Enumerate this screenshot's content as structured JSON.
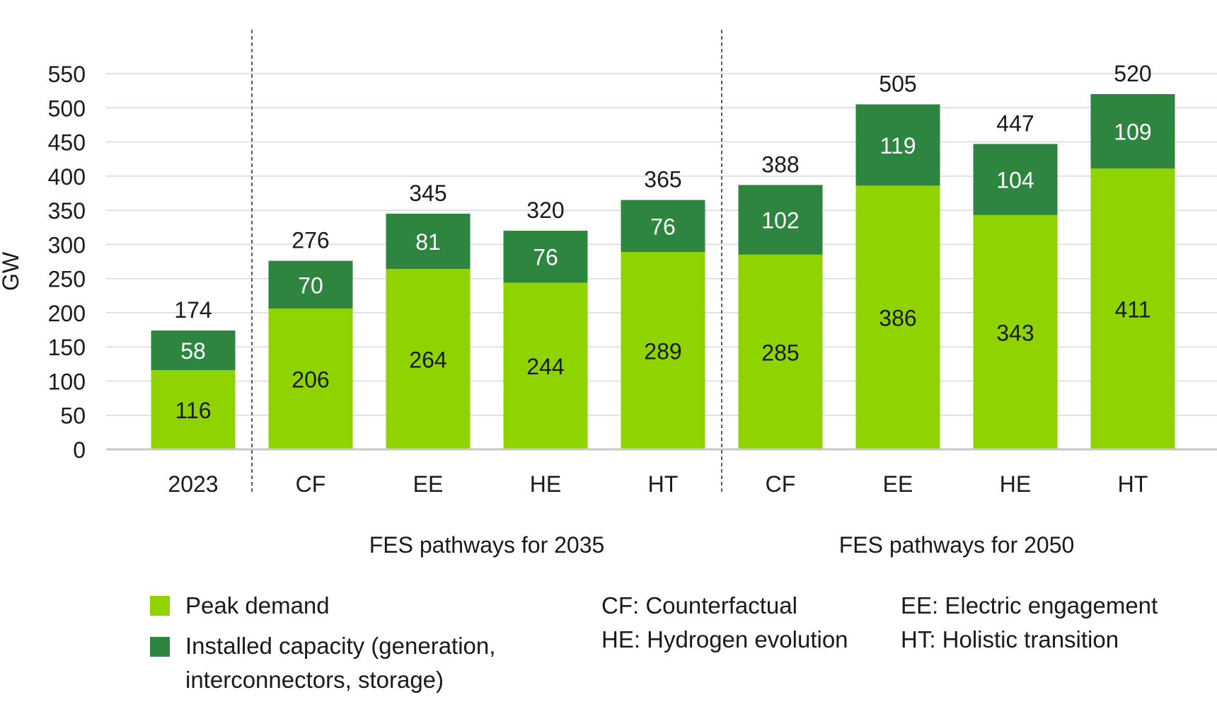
{
  "colors": {
    "peak_demand": "#8fd400",
    "installed_capacity": "#2e8540",
    "grid": "#d9d9d9",
    "axis": "#c8c8c8",
    "text": "#1a1a1a"
  },
  "chart_data": {
    "type": "bar",
    "stacked": true,
    "title": "",
    "ylabel": "GW",
    "xlabel": "",
    "ylim": [
      0,
      550
    ],
    "yticks": [
      0,
      50,
      100,
      150,
      200,
      250,
      300,
      350,
      400,
      450,
      500,
      550
    ],
    "grid": true,
    "categories": [
      "2023",
      "CF",
      "EE",
      "HE",
      "HT",
      "CF",
      "EE",
      "HE",
      "HT"
    ],
    "groups": [
      {
        "label": "",
        "start": 0,
        "end": 0
      },
      {
        "label": "FES pathways for 2035",
        "start": 1,
        "end": 4
      },
      {
        "label": "FES pathways for 2050",
        "start": 5,
        "end": 8
      }
    ],
    "series": [
      {
        "name": "Peak demand",
        "values": [
          116,
          206,
          264,
          244,
          289,
          285,
          386,
          343,
          411
        ]
      },
      {
        "name": "Installed capacity (generation, interconnectors, storage)",
        "values": [
          58,
          70,
          81,
          76,
          76,
          102,
          119,
          104,
          109
        ]
      }
    ],
    "totals": [
      174,
      276,
      345,
      320,
      365,
      388,
      505,
      447,
      520
    ],
    "legend_position": "bottom"
  },
  "legend": {
    "peak_demand": "Peak demand",
    "installed_capacity": "Installed capacity (generation,\ninterconnectors, storage)"
  },
  "abbreviations": {
    "cf": "CF: Counterfactual",
    "he": "HE: Hydrogen evolution",
    "ee": "EE: Electric engagement",
    "ht": "HT: Holistic transition"
  }
}
